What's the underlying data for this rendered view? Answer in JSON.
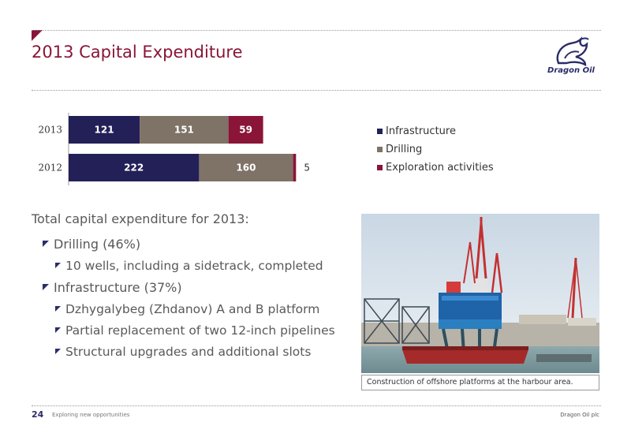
{
  "slide": {
    "title": "2013 Capital Expenditure",
    "logo_text": "Dragon Oil"
  },
  "chart_data": {
    "type": "bar",
    "orientation": "horizontal",
    "stacked": true,
    "categories": [
      "2013",
      "2012"
    ],
    "series": [
      {
        "name": "Infrastructure",
        "values": [
          121,
          222
        ],
        "color": "#232058"
      },
      {
        "name": "Drilling",
        "values": [
          151,
          160
        ],
        "color": "#7f7367"
      },
      {
        "name": "Exploration activities",
        "values": [
          59,
          5
        ],
        "color": "#8a1538"
      }
    ],
    "data_labels": [
      [
        "121",
        "151",
        "59"
      ],
      [
        "222",
        "160",
        "5"
      ]
    ],
    "xlim": [
      0,
      400
    ],
    "grid": false,
    "legend_position": "right"
  },
  "content": {
    "lead": "Total capital expenditure for 2013:",
    "bullets": [
      {
        "level": 1,
        "text": "Drilling (46%)"
      },
      {
        "level": 2,
        "text": "10 wells, including a sidetrack, completed"
      },
      {
        "level": 1,
        "text": "Infrastructure (37%)"
      },
      {
        "level": 2,
        "text": "Dzhygalybeg (Zhdanov) A and B platform"
      },
      {
        "level": 2,
        "text": "Partial replacement of two 12-inch pipelines"
      },
      {
        "level": 2,
        "text": "Structural upgrades and additional slots"
      }
    ]
  },
  "photo": {
    "caption": "Construction of offshore platforms at the harbour area."
  },
  "footer": {
    "page_number": "24",
    "tagline": "Exploring new opportunities",
    "company": "Dragon Oil plc"
  }
}
